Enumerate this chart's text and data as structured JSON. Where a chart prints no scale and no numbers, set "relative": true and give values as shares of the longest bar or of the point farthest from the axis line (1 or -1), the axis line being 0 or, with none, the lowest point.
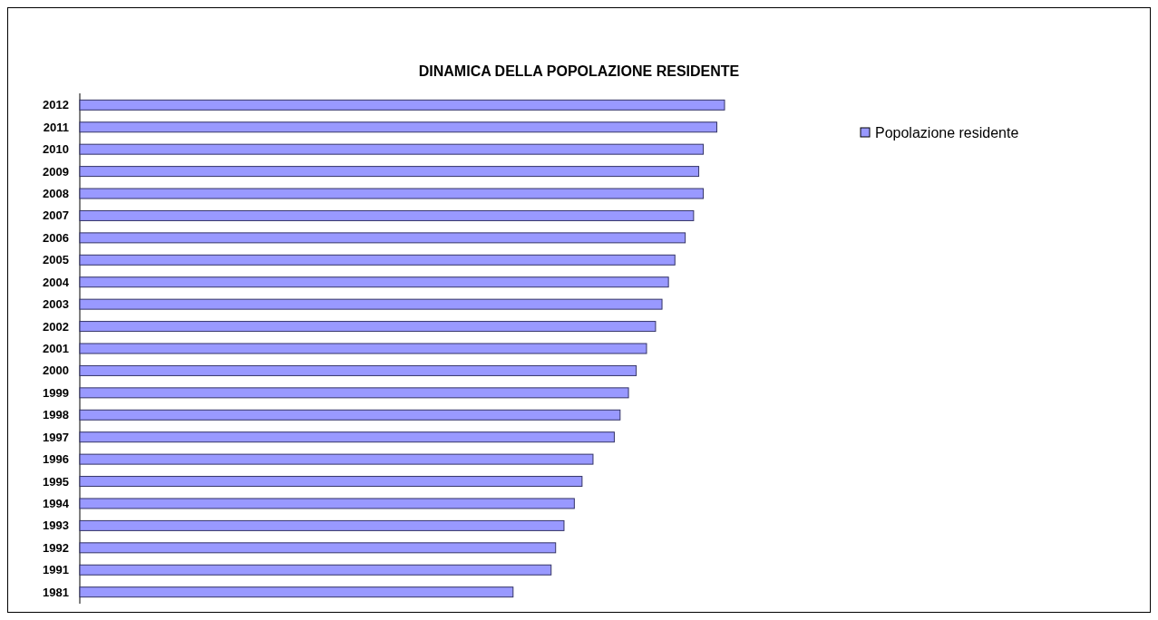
{
  "chart_data": {
    "type": "bar",
    "orientation": "horizontal",
    "relative": true,
    "title": "DINAMICA DELLA POPOLAZIONE RESIDENTE",
    "categories": [
      "2012",
      "2011",
      "2010",
      "2009",
      "2008",
      "2007",
      "2006",
      "2005",
      "2004",
      "2003",
      "2002",
      "2001",
      "2000",
      "1999",
      "1998",
      "1997",
      "1996",
      "1995",
      "1994",
      "1993",
      "1992",
      "1991",
      "1981"
    ],
    "series": [
      {
        "name": "Popolazione residente",
        "color": "#9999ff",
        "values": [
          1,
          0.988,
          0.967,
          0.96,
          0.967,
          0.952,
          0.939,
          0.923,
          0.913,
          0.903,
          0.893,
          0.879,
          0.863,
          0.851,
          0.838,
          0.829,
          0.796,
          0.779,
          0.767,
          0.751,
          0.738,
          0.731,
          0.672
        ]
      }
    ],
    "legend": "top right"
  }
}
